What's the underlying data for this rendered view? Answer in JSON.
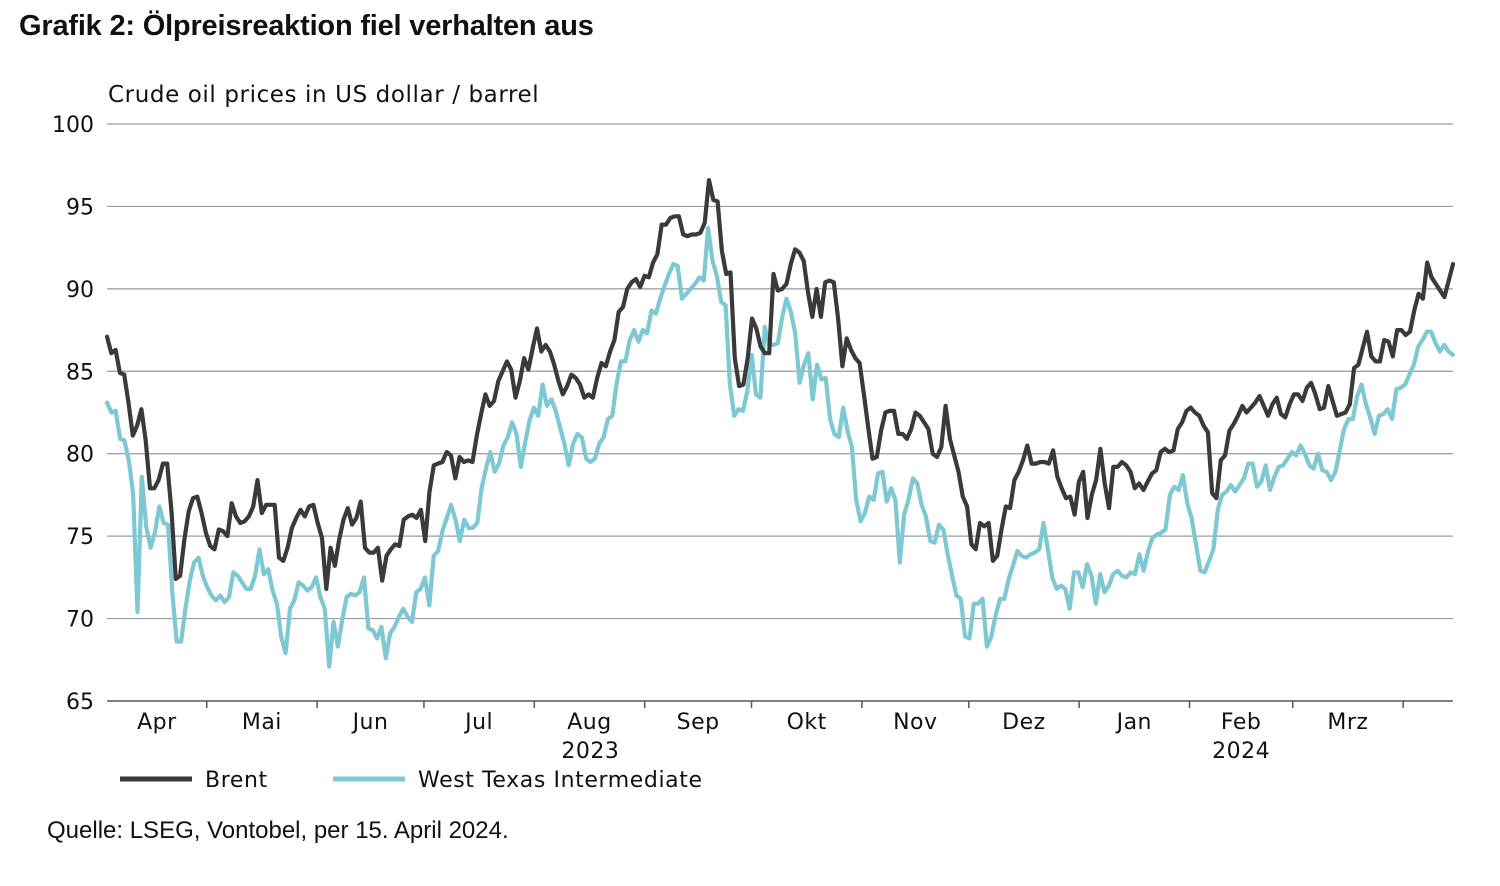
{
  "title": "Grafik 2: Ölpreisreaktion fiel verhalten aus",
  "source": "Quelle: LSEG, Vontobel, per 15. April 2024.",
  "chart_data": {
    "type": "line",
    "ylabel": "Crude oil prices in US dollar / barrel",
    "ylim": [
      65,
      100
    ],
    "yticks": [
      65,
      70,
      75,
      80,
      85,
      90,
      95,
      100
    ],
    "grid": true,
    "legend_position": "bottom-left",
    "months": [
      "Apr",
      "Mai",
      "Jun",
      "Jul",
      "Aug",
      "Sep",
      "Okt",
      "Nov",
      "Dez",
      "Jan",
      "Feb",
      "Mrz"
    ],
    "years": [
      {
        "label": "2023",
        "from_month": 0,
        "to_month": 8
      },
      {
        "label": "2024",
        "from_month": 9,
        "to_month": 11
      }
    ],
    "x_start": "2023-04-03",
    "x_end": "2024-04-15",
    "series": [
      {
        "name": "Brent",
        "color": "#3a3a3a",
        "values": [
          87.1,
          86.1,
          86.3,
          84.9,
          84.8,
          83.1,
          81.1,
          81.7,
          82.7,
          80.8,
          77.9,
          77.9,
          78.4,
          79.4,
          79.4,
          76.5,
          72.4,
          72.6,
          74.8,
          76.5,
          77.3,
          77.4,
          76.4,
          75.2,
          74.4,
          74.2,
          75.4,
          75.3,
          75.0,
          77.0,
          76.2,
          75.8,
          75.9,
          76.2,
          76.8,
          78.4,
          76.4,
          76.9,
          76.9,
          76.9,
          73.7,
          73.5,
          74.3,
          75.5,
          76.1,
          76.6,
          76.2,
          76.8,
          76.9,
          75.8,
          74.9,
          71.8,
          74.3,
          73.2,
          74.8,
          76.0,
          76.7,
          75.7,
          76.1,
          77.1,
          74.3,
          74.0,
          74.0,
          74.3,
          72.3,
          73.8,
          74.2,
          74.5,
          74.4,
          76.0,
          76.2,
          76.3,
          76.1,
          76.6,
          74.7,
          77.7,
          79.3,
          79.4,
          79.5,
          80.1,
          79.9,
          78.5,
          79.8,
          79.5,
          79.6,
          79.5,
          81.1,
          82.4,
          83.6,
          82.9,
          83.2,
          84.4,
          85.0,
          85.6,
          85.1,
          83.4,
          84.4,
          85.8,
          85.1,
          86.4,
          87.6,
          86.2,
          86.6,
          86.2,
          85.4,
          84.4,
          83.6,
          84.1,
          84.8,
          84.6,
          84.2,
          83.4,
          83.6,
          83.4,
          84.6,
          85.5,
          85.3,
          86.2,
          86.9,
          88.6,
          88.9,
          90.0,
          90.4,
          90.6,
          90.1,
          90.8,
          90.7,
          91.6,
          92.1,
          93.9,
          93.9,
          94.3,
          94.4,
          94.4,
          93.3,
          93.2,
          93.3,
          93.3,
          93.4,
          94.0,
          96.6,
          95.4,
          95.3,
          92.3,
          90.9,
          91.0,
          85.8,
          84.1,
          84.2,
          85.8,
          88.2,
          87.6,
          86.5,
          86.1,
          86.1,
          90.9,
          89.9,
          90.0,
          90.3,
          91.5,
          92.4,
          92.2,
          91.7,
          89.8,
          88.3,
          90.0,
          88.3,
          90.4,
          90.5,
          90.4,
          88.2,
          85.3,
          87.0,
          86.3,
          85.8,
          85.5,
          83.6,
          81.6,
          79.7,
          79.8,
          81.4,
          82.5,
          82.6,
          82.6,
          81.2,
          81.2,
          80.9,
          81.5,
          82.5,
          82.3,
          81.9,
          81.5,
          80.0,
          79.8,
          80.4,
          82.9,
          80.9,
          79.9,
          78.9,
          77.4,
          76.8,
          74.5,
          74.2,
          75.8,
          75.6,
          75.8,
          73.5,
          73.8,
          75.4,
          76.8,
          76.7,
          78.4,
          78.9,
          79.6,
          80.5,
          79.4,
          79.4,
          79.5,
          79.5,
          79.4,
          80.2,
          78.6,
          77.9,
          77.3,
          77.4,
          76.3,
          78.3,
          78.9,
          76.1,
          77.5,
          78.4,
          80.3,
          78.2,
          76.7,
          79.2,
          79.2,
          79.5,
          79.3,
          78.9,
          77.9,
          78.2,
          77.8,
          78.3,
          78.8,
          79.0,
          80.1,
          80.3,
          80.1,
          80.2,
          81.5,
          81.9,
          82.6,
          82.8,
          82.5,
          82.3,
          81.7,
          81.3,
          77.6,
          77.3,
          79.6,
          79.9,
          81.4,
          81.8,
          82.3,
          82.9,
          82.5,
          82.8,
          83.1,
          83.5,
          82.9,
          82.3,
          83.0,
          83.4,
          82.4,
          82.2,
          83.0,
          83.6,
          83.6,
          83.2,
          84.0,
          84.3,
          83.6,
          82.7,
          82.8,
          84.1,
          83.2,
          82.3,
          82.4,
          82.5,
          83.0,
          85.2,
          85.4,
          86.4,
          87.4,
          85.9,
          85.6,
          85.6,
          86.9,
          86.8,
          85.9,
          87.5,
          87.5,
          87.2,
          87.4,
          88.7,
          89.7,
          89.4,
          91.6,
          90.7,
          90.3,
          89.9,
          89.5,
          90.5,
          91.5
        ]
      },
      {
        "name": "West Texas Intermediate",
        "color": "#7ec8d3",
        "values": [
          83.1,
          82.5,
          82.6,
          80.9,
          80.8,
          79.6,
          77.6,
          70.4,
          78.6,
          75.6,
          74.3,
          75.2,
          76.8,
          75.8,
          75.7,
          71.6,
          68.6,
          68.6,
          70.6,
          72.3,
          73.4,
          73.7,
          72.6,
          71.9,
          71.4,
          71.1,
          71.4,
          71.0,
          71.3,
          72.8,
          72.6,
          72.2,
          71.8,
          71.8,
          72.6,
          74.2,
          72.7,
          73.0,
          71.7,
          70.9,
          68.9,
          67.9,
          70.6,
          71.1,
          72.2,
          72.0,
          71.7,
          71.9,
          72.5,
          71.3,
          70.6,
          67.1,
          69.8,
          68.3,
          69.9,
          71.3,
          71.5,
          71.4,
          71.6,
          72.5,
          69.4,
          69.3,
          68.8,
          69.5,
          67.6,
          69.1,
          69.5,
          70.1,
          70.6,
          70.1,
          69.8,
          71.6,
          71.8,
          72.5,
          70.8,
          73.8,
          74.1,
          75.3,
          76.1,
          76.9,
          76.0,
          74.7,
          76.0,
          75.5,
          75.5,
          75.8,
          77.9,
          79.1,
          80.1,
          78.9,
          79.4,
          80.5,
          81.0,
          81.9,
          81.2,
          79.2,
          80.7,
          82.0,
          82.8,
          82.3,
          84.2,
          82.9,
          83.3,
          82.6,
          81.6,
          80.6,
          79.3,
          80.6,
          81.2,
          81.0,
          79.7,
          79.5,
          79.7,
          80.6,
          81.0,
          82.1,
          82.3,
          84.3,
          85.6,
          85.6,
          86.9,
          87.5,
          86.8,
          87.5,
          87.3,
          88.7,
          88.5,
          89.4,
          90.2,
          90.9,
          91.5,
          91.4,
          89.4,
          89.7,
          90.0,
          90.3,
          90.7,
          90.5,
          93.7,
          91.7,
          90.8,
          89.2,
          89.0,
          84.2,
          82.3,
          82.7,
          82.6,
          83.8,
          86.0,
          83.6,
          83.4,
          87.7,
          86.6,
          86.6,
          86.7,
          88.3,
          89.4,
          88.6,
          87.3,
          84.3,
          85.4,
          86.1,
          83.3,
          85.4,
          84.5,
          84.6,
          82.1,
          81.2,
          81.0,
          82.8,
          81.4,
          80.4,
          77.2,
          75.9,
          76.4,
          77.4,
          77.2,
          78.8,
          78.9,
          77.1,
          77.9,
          77.2,
          73.4,
          76.3,
          77.2,
          78.5,
          78.2,
          76.9,
          76.2,
          74.7,
          74.6,
          75.7,
          75.4,
          73.9,
          72.6,
          71.4,
          71.2,
          68.9,
          68.8,
          70.9,
          70.9,
          71.2,
          68.3,
          68.9,
          70.2,
          71.2,
          71.2,
          72.4,
          73.2,
          74.1,
          73.8,
          73.7,
          73.9,
          74.0,
          74.2,
          75.8,
          74.2,
          72.5,
          71.8,
          72.0,
          71.8,
          70.6,
          72.8,
          72.8,
          71.9,
          73.3,
          72.6,
          70.9,
          72.7,
          71.6,
          72.0,
          72.7,
          72.9,
          72.6,
          72.5,
          72.8,
          72.7,
          73.9,
          72.9,
          74.1,
          74.9,
          75.1,
          75.2,
          75.4,
          77.5,
          78.0,
          77.8,
          78.7,
          77.0,
          76.1,
          74.5,
          72.9,
          72.8,
          73.5,
          74.2,
          76.6,
          77.5,
          77.7,
          78.1,
          77.7,
          78.1,
          78.5,
          79.4,
          79.4,
          78.0,
          78.3,
          79.3,
          77.8,
          78.6,
          79.2,
          79.3,
          79.7,
          80.1,
          79.9,
          80.5,
          80.0,
          79.3,
          79.1,
          80.0,
          79.0,
          78.9,
          78.4,
          78.9,
          80.2,
          81.5,
          82.1,
          82.1,
          83.5,
          84.2,
          83.0,
          82.2,
          81.2,
          82.3,
          82.4,
          82.7,
          82.1,
          83.9,
          84.0,
          84.2,
          84.8,
          85.4,
          86.5,
          86.9,
          87.4,
          87.4,
          86.7,
          86.2,
          86.6,
          86.2,
          86.0
        ]
      }
    ]
  }
}
